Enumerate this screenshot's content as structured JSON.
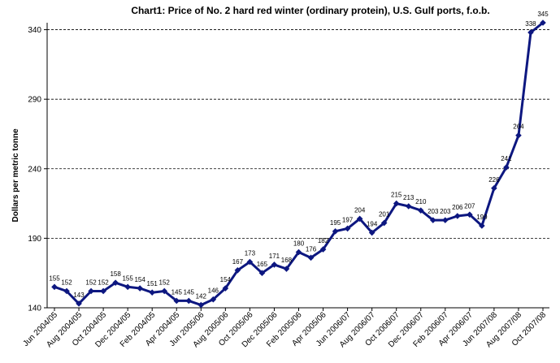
{
  "chart_data": {
    "type": "line",
    "title": "Chart1: Price of No. 2 hard red winter (ordinary protein), U.S. Gulf ports, f.o.b.",
    "xlabel": "",
    "ylabel": "Dollars per metric tonne",
    "ylim": [
      140,
      345
    ],
    "yticks": [
      "140",
      "190",
      "240",
      "290",
      "340"
    ],
    "ytick_values": [
      140,
      190,
      240,
      290,
      340
    ],
    "grid": true,
    "x_tick_labels": [
      "Jun 2004/05",
      "Aug 2004/05",
      "Oct 2004/05",
      "Dec 2004/05",
      "Feb 2004/05",
      "Apr 2004/05",
      "Jun 2005/06",
      "Aug 2005/06",
      "Oct 2005/06",
      "Dec 2005/06",
      "Feb 2005/06",
      "Apr 2005/06",
      "Jun 2006/07",
      "Aug 2006/07",
      "Oct 2006/07",
      "Dec 2006/07",
      "Feb 2006/07",
      "Apr 2006/07",
      "Jun 2007/08",
      "Aug 2007/08",
      "Oct 2007/08"
    ],
    "series": [
      {
        "values": [
          155,
          152,
          143,
          152,
          152,
          158,
          155,
          154,
          151,
          152,
          145,
          145,
          142,
          146,
          154,
          167,
          173,
          165,
          171,
          168,
          180,
          176,
          182,
          195,
          197,
          204,
          194,
          201,
          215,
          213,
          210,
          203,
          203,
          206,
          207,
          199,
          226,
          241,
          264,
          338,
          345
        ],
        "labels": [
          "155",
          "152",
          "143",
          "152",
          "152",
          "158",
          "155",
          "154",
          "151",
          "152",
          "145",
          "145",
          "142",
          "146",
          "154",
          "167",
          "173",
          "165",
          "171",
          "168",
          "180",
          "176",
          "182",
          "195",
          "197",
          "204",
          "194",
          "201",
          "215",
          "213",
          "210",
          "203",
          "203",
          "206",
          "207",
          "199",
          "226",
          "241",
          "264",
          "338",
          "345"
        ]
      }
    ]
  }
}
